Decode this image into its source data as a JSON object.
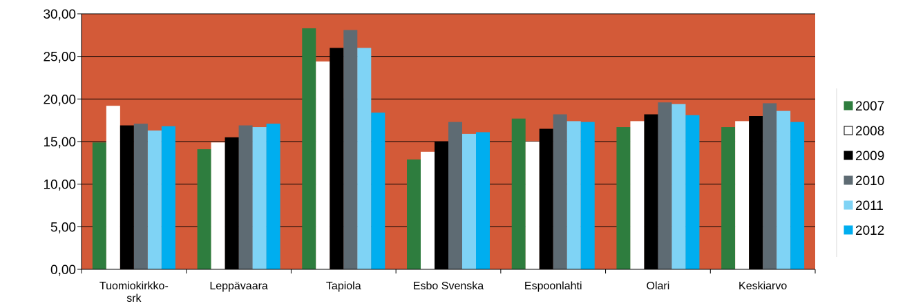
{
  "chart_data": {
    "type": "bar",
    "categories": [
      [
        "Tuomiokirkko-",
        "srk"
      ],
      [
        "Leppävaara"
      ],
      [
        "Tapiola"
      ],
      [
        "Esbo Svenska"
      ],
      [
        "Espoonlahti"
      ],
      [
        "Olari"
      ],
      [
        "Keskiarvo"
      ]
    ],
    "series": [
      {
        "name": "2007",
        "color": "#2E7D3E",
        "values": [
          14.9,
          14.1,
          28.3,
          12.9,
          17.7,
          16.7,
          16.7
        ]
      },
      {
        "name": "2008",
        "color": "#FFFFFF",
        "values": [
          19.2,
          14.9,
          24.4,
          13.8,
          15.0,
          17.4,
          17.4
        ]
      },
      {
        "name": "2009",
        "color": "#000000",
        "values": [
          16.9,
          15.5,
          26.0,
          15.0,
          16.5,
          18.2,
          18.0
        ]
      },
      {
        "name": "2010",
        "color": "#5E6B73",
        "values": [
          17.1,
          16.9,
          28.1,
          17.3,
          18.2,
          19.6,
          19.5
        ]
      },
      {
        "name": "2011",
        "color": "#7FD3F5",
        "values": [
          16.3,
          16.7,
          26.0,
          15.9,
          17.4,
          19.4,
          18.6
        ]
      },
      {
        "name": "2012",
        "color": "#00AEEF",
        "values": [
          16.8,
          17.1,
          18.4,
          16.1,
          17.3,
          18.1,
          17.3
        ]
      }
    ],
    "ylim": [
      0,
      30
    ],
    "yticks": [
      "0,00",
      "5,00",
      "10,00",
      "15,00",
      "20,00",
      "25,00",
      "30,00"
    ],
    "plot_background": "#D35A38",
    "grid": true,
    "legend_position": "right",
    "title": "",
    "xlabel": "",
    "ylabel": ""
  }
}
